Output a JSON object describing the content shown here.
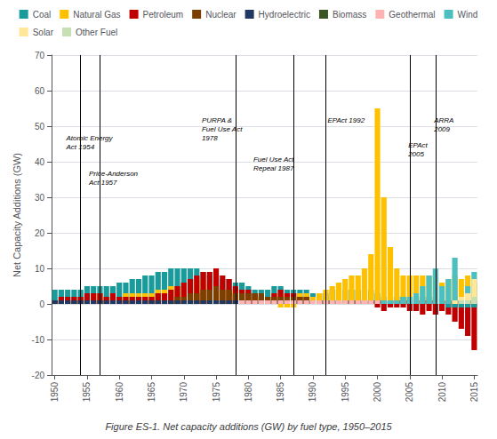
{
  "chart_data": {
    "type": "bar",
    "title": "Figure ES-1. Net capacity additions (GW) by fuel type, 1950–2015",
    "ylabel": "Net Capacity Additions (GW)",
    "stacked": true,
    "grid": true,
    "legend": "top",
    "x": [
      1950,
      1951,
      1952,
      1953,
      1954,
      1955,
      1956,
      1957,
      1958,
      1959,
      1960,
      1961,
      1962,
      1963,
      1964,
      1965,
      1966,
      1967,
      1968,
      1969,
      1970,
      1971,
      1972,
      1973,
      1974,
      1975,
      1976,
      1977,
      1978,
      1979,
      1980,
      1981,
      1982,
      1983,
      1984,
      1985,
      1986,
      1987,
      1988,
      1989,
      1990,
      1991,
      1992,
      1993,
      1994,
      1995,
      1996,
      1997,
      1998,
      1999,
      2000,
      2001,
      2002,
      2003,
      2004,
      2005,
      2006,
      2007,
      2008,
      2009,
      2010,
      2011,
      2012,
      2013,
      2014,
      2015
    ],
    "xlim": [
      1949.5,
      2015.5
    ],
    "xticks": [
      1950,
      1955,
      1960,
      1965,
      1970,
      1975,
      1980,
      1985,
      1990,
      1995,
      2000,
      2005,
      2010,
      2015
    ],
    "ylim": [
      -20,
      70
    ],
    "yticks": [
      -20,
      -10,
      0,
      10,
      20,
      30,
      40,
      50,
      60,
      70
    ],
    "series": [
      {
        "name": "Coal",
        "color": "#1A9B9B",
        "values": [
          4,
          4,
          4,
          4,
          4,
          5,
          5,
          5,
          5,
          5,
          6,
          6,
          7,
          7,
          8,
          8,
          9,
          9,
          10,
          10,
          10,
          10,
          10,
          9,
          8,
          8,
          7,
          7,
          6,
          6,
          5,
          4,
          4,
          4,
          5,
          5,
          4,
          4,
          4,
          4,
          3,
          3,
          3,
          4,
          4,
          4,
          4,
          4,
          4,
          4,
          3,
          2,
          2,
          2,
          2,
          2,
          2,
          2,
          2,
          2,
          1,
          1,
          1,
          1,
          1,
          1
        ]
      },
      {
        "name": "Natural Gas",
        "color": "#FFC000",
        "values": [
          1,
          1,
          1,
          1,
          2,
          2,
          3,
          3,
          2,
          2,
          2,
          3,
          3,
          3,
          3,
          3,
          4,
          4,
          5,
          5,
          6,
          6,
          7,
          7,
          6,
          5,
          4,
          4,
          4,
          4,
          2,
          2,
          2,
          2,
          3,
          3,
          3,
          3,
          3,
          3,
          2,
          3,
          4,
          5,
          6,
          7,
          8,
          8,
          10,
          14,
          55,
          30,
          16,
          10,
          8,
          8,
          8,
          8,
          8,
          8,
          6,
          7,
          8,
          7,
          8,
          6
        ]
      },
      {
        "name": "Petroleum",
        "color": "#C00000",
        "values": [
          1,
          2,
          2,
          2,
          2,
          3,
          3,
          3,
          2,
          3,
          2,
          2,
          2,
          2,
          2,
          2,
          3,
          3,
          4,
          5,
          6,
          7,
          8,
          9,
          9,
          10,
          8,
          7,
          5,
          4,
          4,
          3,
          2,
          2,
          3,
          4,
          3,
          3,
          2,
          2,
          1,
          1,
          1,
          1,
          1,
          1,
          1,
          1,
          1,
          1,
          1,
          1,
          1,
          1,
          1,
          1,
          1,
          1,
          1,
          1,
          1,
          1,
          1,
          1,
          1,
          1
        ]
      },
      {
        "name": "Nuclear",
        "color": "#7B3F00",
        "values": [
          0,
          0,
          0,
          0,
          0,
          0,
          0,
          0,
          0,
          0,
          0,
          0,
          0,
          0,
          0,
          0,
          0,
          1,
          1,
          2,
          2,
          3,
          3,
          4,
          4,
          5,
          4,
          4,
          3,
          3,
          3,
          3,
          3,
          2,
          2,
          2,
          2,
          2,
          2,
          2,
          1,
          1,
          1,
          1,
          1,
          1,
          1,
          1,
          1,
          1,
          1,
          1,
          1,
          1,
          1,
          1,
          1,
          1,
          1,
          1,
          0,
          0,
          0,
          0,
          0,
          0
        ]
      },
      {
        "name": "Hydroelectric",
        "color": "#1F3864",
        "values": [
          1,
          1,
          1,
          1,
          1,
          1,
          1,
          1,
          1,
          1,
          1,
          1,
          1,
          1,
          1,
          1,
          1,
          1,
          1,
          1,
          1,
          1,
          1,
          1,
          1,
          1,
          1,
          1,
          1,
          1,
          1,
          1,
          1,
          1,
          1,
          1,
          1,
          1,
          1,
          1,
          1,
          1,
          1,
          1,
          1,
          1,
          1,
          1,
          1,
          1,
          1,
          1,
          1,
          1,
          1,
          1,
          1,
          1,
          1,
          1,
          1,
          1,
          1,
          1,
          1,
          1
        ]
      },
      {
        "name": "Biomass",
        "color": "#375623",
        "values": [
          0,
          0,
          0,
          0,
          0,
          0,
          0,
          0,
          0,
          0,
          0,
          0,
          0,
          0,
          0,
          0,
          0,
          0,
          0,
          0,
          0,
          0,
          0,
          0,
          0,
          0,
          0,
          0,
          0,
          0,
          0,
          0,
          0,
          0,
          1,
          1,
          1,
          1,
          1,
          1,
          1,
          1,
          1,
          1,
          1,
          1,
          1,
          1,
          1,
          1,
          1,
          1,
          1,
          1,
          1,
          1,
          1,
          1,
          1,
          1,
          1,
          1,
          1,
          1,
          1,
          1
        ]
      },
      {
        "name": "Geothermal",
        "color": "#FFB3B3",
        "values": [
          0,
          0,
          0,
          0,
          0,
          0,
          0,
          0,
          0,
          0,
          0,
          0,
          0,
          0,
          0,
          0,
          0,
          0,
          0,
          0,
          0,
          0,
          0,
          0,
          0,
          0,
          0,
          0,
          0,
          1,
          1,
          1,
          1,
          1,
          1,
          1,
          1,
          1,
          1,
          1,
          1,
          1,
          1,
          1,
          1,
          1,
          1,
          1,
          1,
          1,
          1,
          1,
          1,
          1,
          1,
          1,
          1,
          1,
          1,
          1,
          1,
          1,
          1,
          1,
          1,
          1
        ]
      },
      {
        "name": "Wind",
        "color": "#4DBFBF",
        "values": [
          0,
          0,
          0,
          0,
          0,
          0,
          0,
          0,
          0,
          0,
          0,
          0,
          0,
          0,
          0,
          0,
          0,
          0,
          0,
          0,
          0,
          0,
          0,
          0,
          0,
          0,
          0,
          0,
          0,
          0,
          0,
          0,
          0,
          0,
          0,
          0,
          0,
          0,
          0,
          0,
          0,
          0,
          0,
          0,
          0,
          0,
          0,
          0,
          0,
          0,
          0,
          1,
          1,
          1,
          2,
          2,
          3,
          5,
          8,
          10,
          5,
          7,
          13,
          1,
          5,
          9
        ]
      },
      {
        "name": "Solar",
        "color": "#FFE699",
        "values": [
          0,
          0,
          0,
          0,
          0,
          0,
          0,
          0,
          0,
          0,
          0,
          0,
          0,
          0,
          0,
          0,
          0,
          0,
          0,
          0,
          0,
          0,
          0,
          0,
          0,
          0,
          0,
          0,
          0,
          0,
          0,
          0,
          0,
          0,
          0,
          0,
          0,
          0,
          0,
          0,
          0,
          0,
          0,
          0,
          0,
          0,
          0,
          0,
          0,
          0,
          0,
          0,
          0,
          0,
          0,
          0,
          0,
          0,
          0,
          0,
          0,
          0,
          1,
          2,
          3,
          7
        ]
      },
      {
        "name": "Other Fuel",
        "color": "#C6E0B4",
        "values": [
          0,
          0,
          0,
          0,
          0,
          0,
          0,
          0,
          0,
          0,
          0,
          0,
          0,
          0,
          0,
          0,
          0,
          0,
          0,
          0,
          0,
          0,
          0,
          0,
          0,
          0,
          0,
          0,
          0,
          0,
          0,
          0,
          0,
          0,
          0,
          0,
          0,
          0,
          0,
          0,
          0,
          0,
          0,
          0,
          0,
          0,
          0,
          0,
          0,
          0,
          0,
          0,
          0,
          0,
          0,
          0,
          0,
          0,
          0,
          0,
          0,
          0,
          0,
          1,
          1,
          2
        ]
      },
      {
        "name": "Petroleum",
        "color": "#C00000",
        "values": [
          0,
          0,
          0,
          0,
          0,
          0,
          0,
          0,
          0,
          0,
          0,
          0,
          0,
          0,
          0,
          0,
          0,
          0,
          0,
          0,
          0,
          0,
          0,
          0,
          0,
          0,
          0,
          0,
          0,
          0,
          0,
          0,
          0,
          0,
          0,
          0,
          0,
          0,
          0,
          0,
          0,
          0,
          0,
          0,
          0,
          0,
          0,
          0,
          0,
          0,
          -1,
          -2,
          -1,
          -1,
          -1,
          -2,
          -2,
          -3,
          -2,
          -3,
          -2,
          -3,
          -5,
          -7,
          -9,
          -13
        ]
      },
      {
        "name": "Coal",
        "color": "#1A9B9B",
        "values": [
          0,
          0,
          0,
          0,
          0,
          0,
          0,
          0,
          0,
          0,
          0,
          0,
          0,
          0,
          0,
          0,
          0,
          0,
          0,
          0,
          0,
          0,
          0,
          0,
          0,
          0,
          0,
          0,
          0,
          0,
          0,
          0,
          0,
          0,
          0,
          0,
          0,
          0,
          0,
          0,
          0,
          0,
          0,
          0,
          0,
          0,
          0,
          0,
          0,
          0,
          0,
          0,
          0,
          0,
          0,
          0,
          0,
          0,
          0,
          0,
          0,
          -1,
          -1,
          -1,
          -1,
          -1
        ]
      },
      {
        "name": "Natural Gas",
        "color": "#FFC000",
        "values": [
          0,
          0,
          0,
          0,
          0,
          0,
          0,
          0,
          0,
          0,
          0,
          0,
          0,
          0,
          0,
          0,
          0,
          0,
          0,
          0,
          0,
          0,
          0,
          0,
          0,
          0,
          0,
          0,
          0,
          0,
          0,
          0,
          0,
          0,
          0,
          -1,
          -1,
          -1,
          0,
          0,
          0,
          0,
          0,
          0,
          0,
          0,
          0,
          0,
          0,
          0,
          0,
          0,
          0,
          0,
          0,
          0,
          0,
          0,
          0,
          0,
          0,
          0,
          0,
          0,
          0,
          0
        ]
      },
      {
        "name": "Nuclear",
        "color": "#7B3F00",
        "values": [
          0,
          0,
          0,
          0,
          0,
          0,
          0,
          0,
          0,
          0,
          0,
          0,
          0,
          0,
          0,
          0,
          0,
          0,
          0,
          0,
          0,
          0,
          0,
          0,
          0,
          0,
          0,
          0,
          0,
          0,
          0,
          0,
          0,
          0,
          0,
          0,
          0,
          0,
          0,
          0,
          0,
          0,
          0,
          0,
          0,
          0,
          0,
          0,
          0,
          0,
          0,
          0,
          0,
          0,
          0,
          0,
          0,
          0,
          0,
          0,
          0,
          0,
          0,
          0,
          0,
          0
        ]
      },
      {
        "name": "Hydroelectric",
        "color": "#1F3864",
        "values": [
          0,
          0,
          0,
          0,
          0,
          0,
          0,
          0,
          0,
          0,
          0,
          0,
          0,
          0,
          0,
          0,
          0,
          0,
          0,
          0,
          0,
          0,
          0,
          0,
          0,
          0,
          0,
          0,
          0,
          0,
          0,
          0,
          0,
          0,
          0,
          0,
          0,
          0,
          0,
          0,
          0,
          0,
          0,
          0,
          0,
          0,
          0,
          0,
          0,
          0,
          0,
          0,
          0,
          0,
          0,
          0,
          0,
          0,
          0,
          0,
          0,
          0,
          0,
          0,
          0,
          0
        ]
      }
    ],
    "annotations": [
      {
        "text": "Atomic Energy\nAct 1954",
        "x": 1951.5,
        "y": 48,
        "line_x": 1954
      },
      {
        "text": "Price-Anderson\nAct 1957",
        "x": 1955.0,
        "y": 38,
        "line_x": 1957
      },
      {
        "text": "PURPA &\nFuel Use Act\n1978",
        "x": 1972.5,
        "y": 53,
        "line_x": 1978
      },
      {
        "text": "Fuel Use Act\nRepeal 1987",
        "x": 1980.5,
        "y": 42,
        "line_x": 1987
      },
      {
        "text": "EPAct 1992",
        "x": 1992.0,
        "y": 53,
        "line_x": 1992
      },
      {
        "text": "EPAct\n2005",
        "x": 2004.5,
        "y": 46,
        "line_x": 2005
      },
      {
        "text": "ARRA\n2009",
        "x": 2008.5,
        "y": 53,
        "line_x": 2009
      }
    ]
  }
}
